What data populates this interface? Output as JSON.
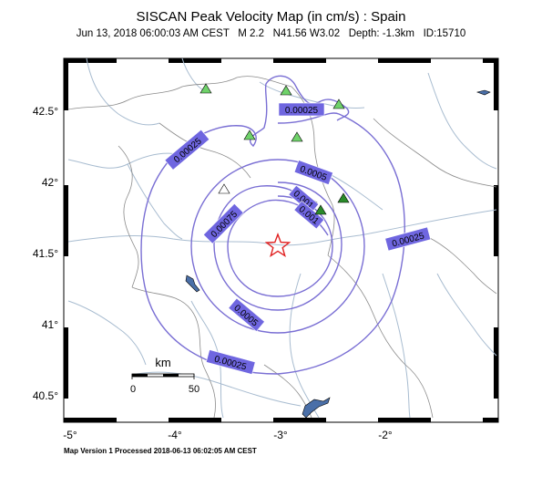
{
  "title": "SISCAN Peak Velocity Map (in cm/s) : Spain",
  "subtitle": {
    "date": "Jun 13, 2018 06:00:03 AM CEST",
    "magnitude": "M 2.2",
    "location": "N41.56 W3.02",
    "depth": "Depth: -1.3km",
    "id": "ID:15710"
  },
  "axes": {
    "x_ticks": [
      "-5°",
      "-4°",
      "-3°",
      "-2°"
    ],
    "y_ticks": [
      "42.5°",
      "42°",
      "41.5°",
      "41°",
      "40.5°"
    ]
  },
  "contour_labels": [
    "0.00025",
    "0.00025",
    "0.00025",
    "0.00025",
    "0.0005",
    "0.0005",
    "0.00075",
    "0.001",
    "0.001"
  ],
  "scale_bar": {
    "unit": "km",
    "min": "0",
    "max": "50"
  },
  "footer": "Map Version 1 Processed 2018-06-13 06:02:05 AM CEST",
  "colors": {
    "contour": "#7a6fd4",
    "label_bg": "#6f66e0",
    "river": "#a8bcd0",
    "border": "#8a8a8a",
    "station_green": "#6fd26a",
    "station_dark": "#2a8a2a",
    "epicenter": "#e02020"
  },
  "markers": {
    "epicenter": "star-icon",
    "stations": "triangle-icon"
  }
}
